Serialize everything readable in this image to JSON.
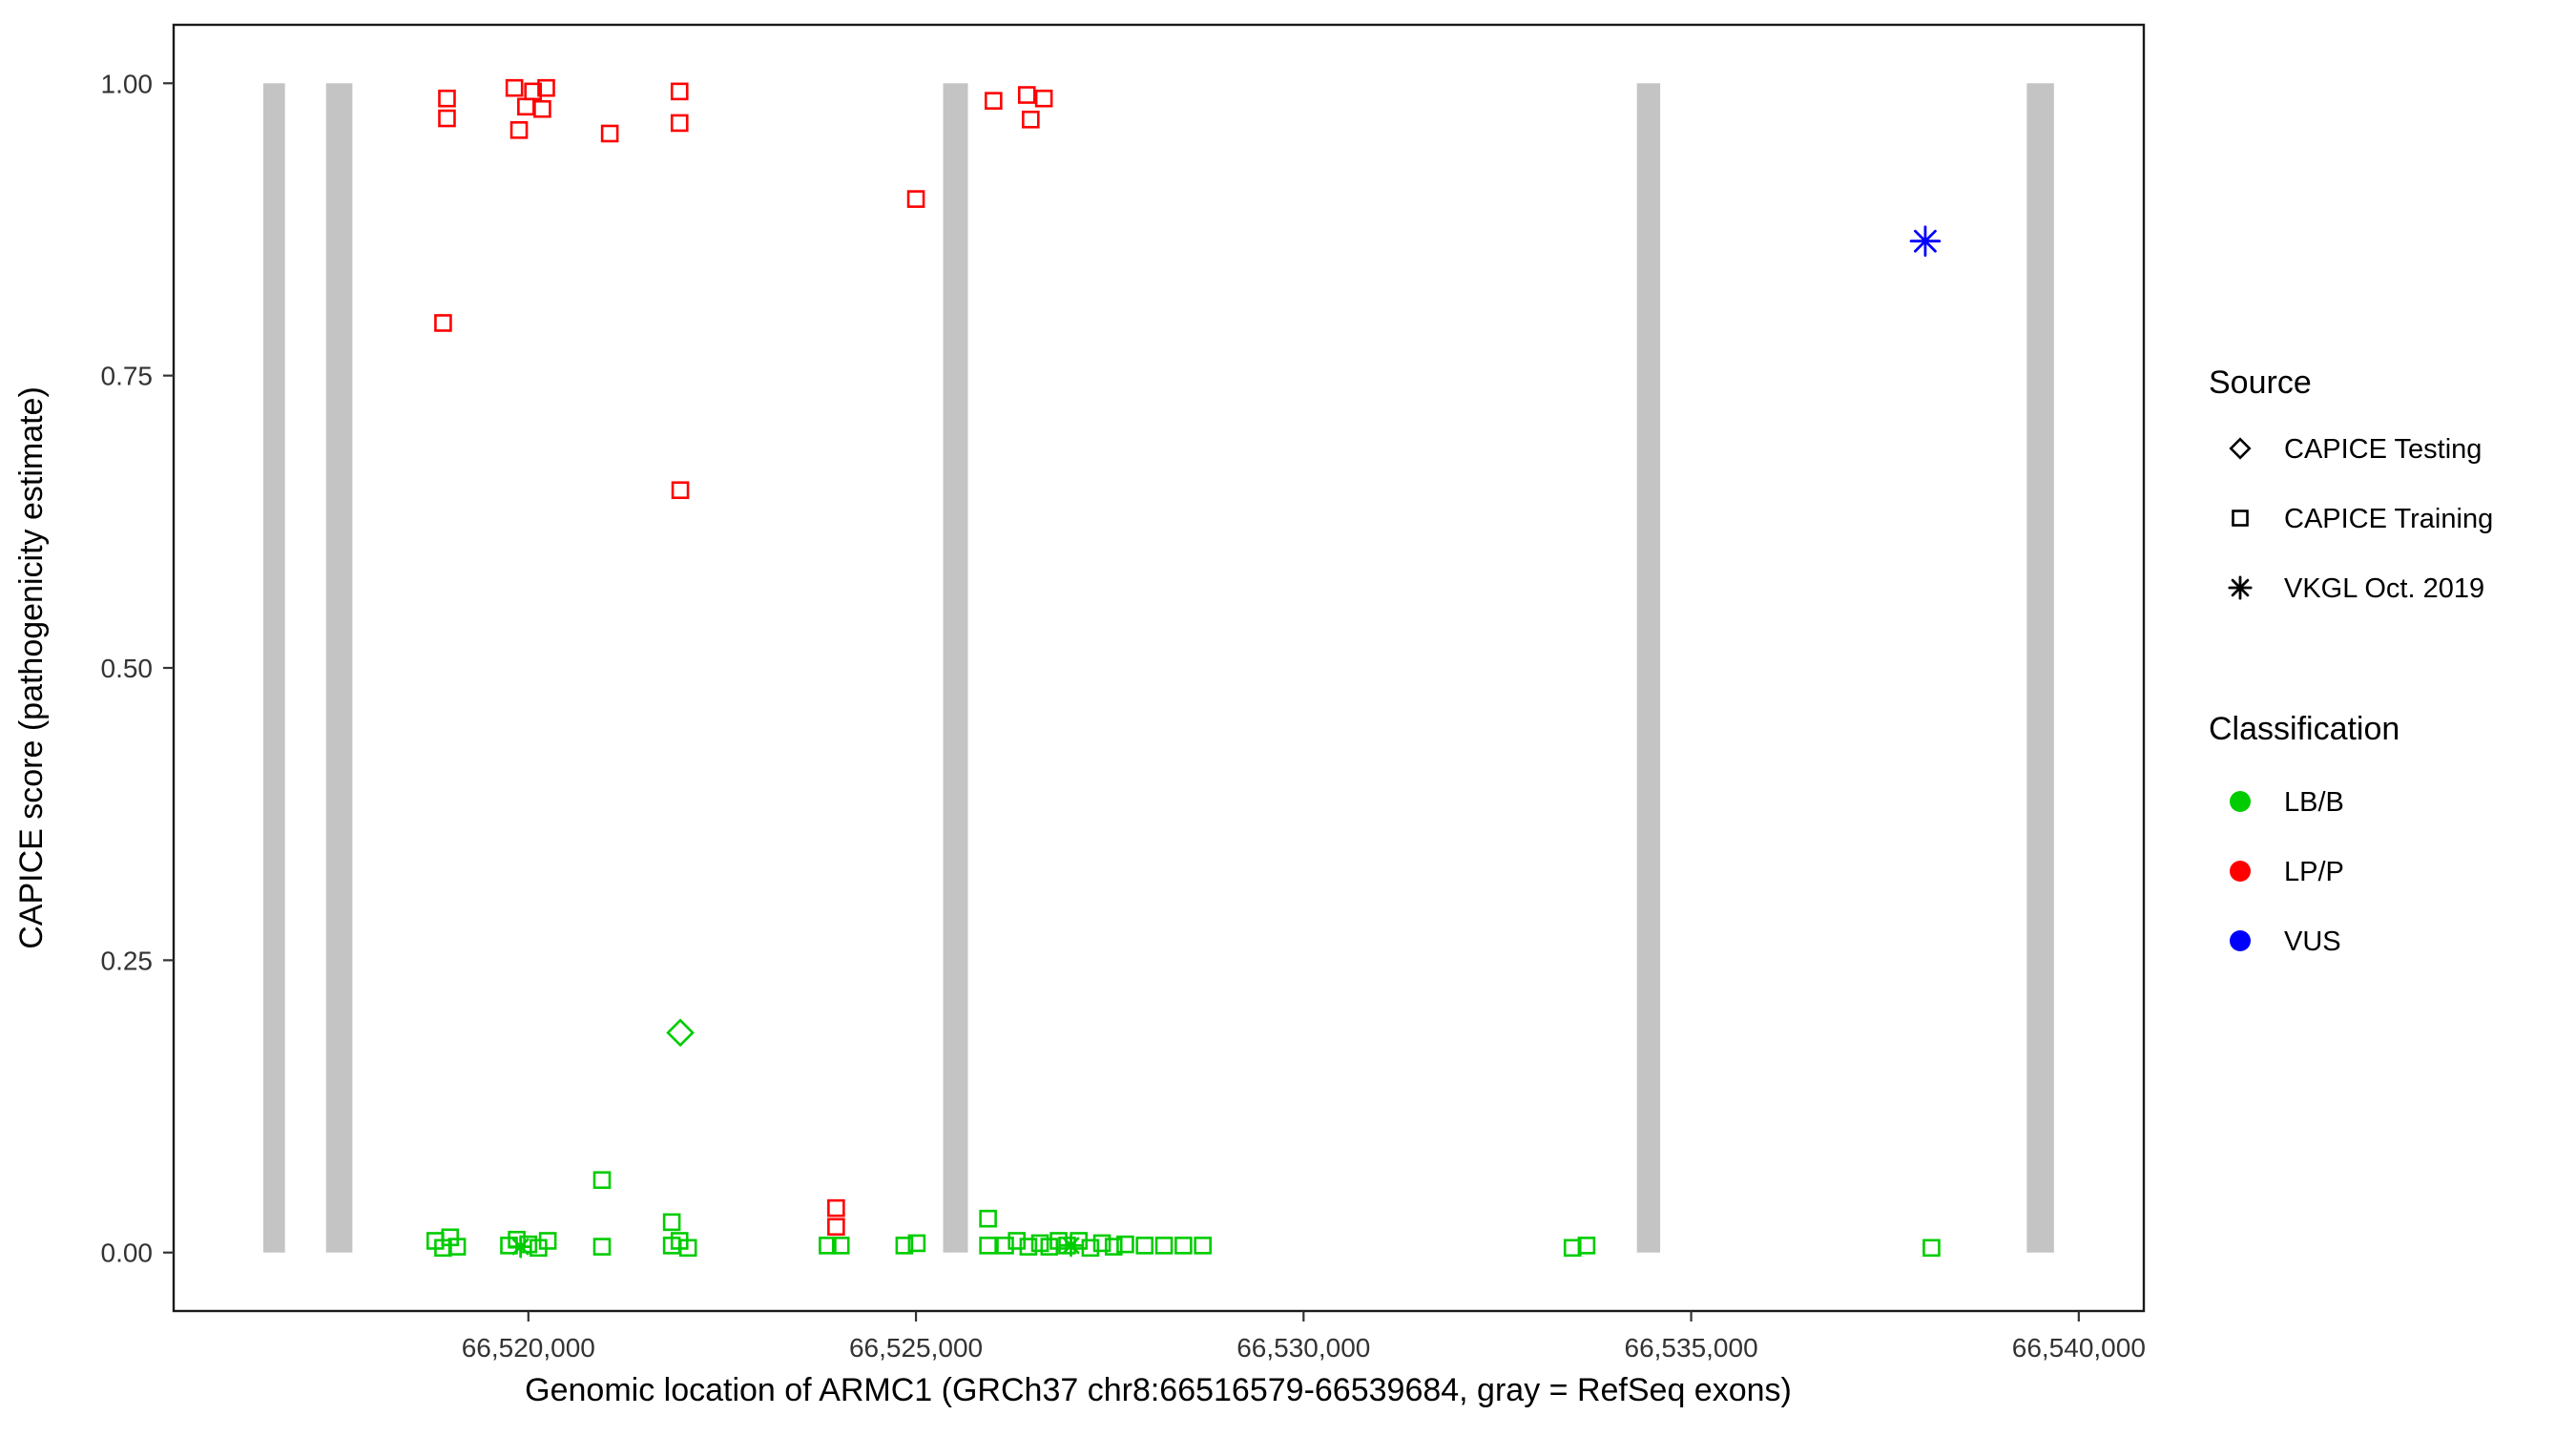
{
  "figure": {
    "background": "#ffffff",
    "panel_border_color": "#1a1a1a",
    "tick_color": "#333333"
  },
  "chart_data": {
    "type": "scatter",
    "title": "",
    "xlabel": "Genomic location of ARMC1 (GRCh37 chr8:66516579-66539684, gray = RefSeq exons)",
    "ylabel": "CAPICE score (pathogenicity estimate)",
    "xlim": [
      66515424,
      66540839
    ],
    "ylim": [
      -0.05,
      1.05
    ],
    "grid": false,
    "x_ticks": [
      {
        "value": 66520000,
        "label": "66,520,000"
      },
      {
        "value": 66525000,
        "label": "66,525,000"
      },
      {
        "value": 66530000,
        "label": "66,530,000"
      },
      {
        "value": 66535000,
        "label": "66,535,000"
      },
      {
        "value": 66540000,
        "label": "66,540,000"
      }
    ],
    "y_ticks": [
      {
        "value": 0.0,
        "label": "0.00"
      },
      {
        "value": 0.25,
        "label": "0.25"
      },
      {
        "value": 0.5,
        "label": "0.50"
      },
      {
        "value": 0.75,
        "label": "0.75"
      },
      {
        "value": 1.0,
        "label": "1.00"
      }
    ],
    "colors": {
      "exon": "#c4c4c4",
      "lbb": "#00cc00",
      "lpp": "#ff0000",
      "vus": "#0000ff"
    },
    "exons": [
      [
        66516580,
        66516860
      ],
      [
        66517390,
        66517730
      ],
      [
        66525350,
        66525670
      ],
      [
        66534300,
        66534600
      ],
      [
        66539330,
        66539680
      ]
    ],
    "series": [
      {
        "name": "LP/P — CAPICE Training",
        "classification": "LP/P",
        "source": "CAPICE Training",
        "shape": "square-open",
        "color": "#ff0000",
        "size": 16,
        "points": [
          [
            66518950,
            0.987
          ],
          [
            66518950,
            0.97
          ],
          [
            66519820,
            0.996
          ],
          [
            66520060,
            0.993
          ],
          [
            66520230,
            0.996
          ],
          [
            66519970,
            0.98
          ],
          [
            66520180,
            0.978
          ],
          [
            66519880,
            0.96
          ],
          [
            66521050,
            0.957
          ],
          [
            66521950,
            0.993
          ],
          [
            66521950,
            0.966
          ],
          [
            66518900,
            0.795
          ],
          [
            66521960,
            0.652
          ],
          [
            66525000,
            0.901
          ],
          [
            66526000,
            0.985
          ],
          [
            66526430,
            0.99
          ],
          [
            66526650,
            0.987
          ],
          [
            66526480,
            0.969
          ],
          [
            66523970,
            0.038
          ],
          [
            66523970,
            0.022
          ]
        ]
      },
      {
        "name": "LB/B — CAPICE Training",
        "classification": "LB/B",
        "source": "CAPICE Training",
        "shape": "square-open",
        "color": "#00cc00",
        "size": 16,
        "points": [
          [
            66518800,
            0.01
          ],
          [
            66518900,
            0.004
          ],
          [
            66518990,
            0.013
          ],
          [
            66519080,
            0.005
          ],
          [
            66519750,
            0.006
          ],
          [
            66519850,
            0.011
          ],
          [
            66520000,
            0.007
          ],
          [
            66520130,
            0.004
          ],
          [
            66520250,
            0.01
          ],
          [
            66520950,
            0.062
          ],
          [
            66520950,
            0.005
          ],
          [
            66521850,
            0.026
          ],
          [
            66521850,
            0.006
          ],
          [
            66521950,
            0.01
          ],
          [
            66522060,
            0.004
          ],
          [
            66523860,
            0.006
          ],
          [
            66524030,
            0.006
          ],
          [
            66524850,
            0.006
          ],
          [
            66525010,
            0.008
          ],
          [
            66525930,
            0.029
          ],
          [
            66525930,
            0.006
          ],
          [
            66526150,
            0.006
          ],
          [
            66526300,
            0.01
          ],
          [
            66526450,
            0.005
          ],
          [
            66526600,
            0.008
          ],
          [
            66526720,
            0.005
          ],
          [
            66526840,
            0.01
          ],
          [
            66526950,
            0.006
          ],
          [
            66527100,
            0.01
          ],
          [
            66527250,
            0.004
          ],
          [
            66527400,
            0.008
          ],
          [
            66527550,
            0.005
          ],
          [
            66527700,
            0.007
          ],
          [
            66527950,
            0.006
          ],
          [
            66528200,
            0.006
          ],
          [
            66528450,
            0.006
          ],
          [
            66528700,
            0.006
          ],
          [
            66533470,
            0.004
          ],
          [
            66533650,
            0.006
          ],
          [
            66538100,
            0.004
          ]
        ]
      },
      {
        "name": "LB/B — CAPICE Testing",
        "classification": "LB/B",
        "source": "CAPICE Testing",
        "shape": "diamond-open",
        "color": "#00cc00",
        "size": 20,
        "points": [
          [
            66521960,
            0.188
          ]
        ]
      },
      {
        "name": "LB/B — VKGL Oct. 2019",
        "classification": "LB/B",
        "source": "VKGL Oct. 2019",
        "shape": "asterisk",
        "color": "#00cc00",
        "size": 17,
        "points": [
          [
            66519900,
            0.005
          ],
          [
            66527000,
            0.006
          ]
        ]
      },
      {
        "name": "VUS — VKGL Oct. 2019",
        "classification": "VUS",
        "source": "VKGL Oct. 2019",
        "shape": "asterisk",
        "color": "#0000ff",
        "size": 24,
        "points": [
          [
            66538020,
            0.865
          ]
        ]
      }
    ],
    "legend": {
      "source": {
        "title": "Source",
        "items": [
          {
            "label": "CAPICE Testing",
            "shape": "diamond-open"
          },
          {
            "label": "CAPICE Training",
            "shape": "square-open"
          },
          {
            "label": "VKGL Oct. 2019",
            "shape": "asterisk"
          }
        ]
      },
      "classification": {
        "title": "Classification",
        "items": [
          {
            "label": "LB/B",
            "color": "#00cc00"
          },
          {
            "label": "LP/P",
            "color": "#ff0000"
          },
          {
            "label": "VUS",
            "color": "#0000ff"
          }
        ]
      }
    }
  }
}
